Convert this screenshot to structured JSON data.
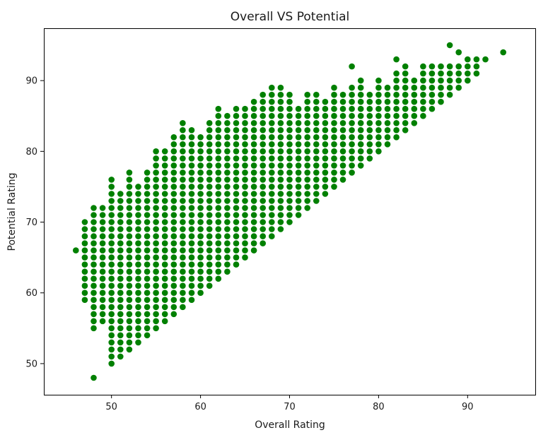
{
  "chart_data": {
    "type": "scatter",
    "title": "Overall VS Potential",
    "xlabel": "Overall Rating",
    "ylabel": "Potential Rating",
    "xlim": [
      42.4,
      97.6
    ],
    "ylim": [
      45.6,
      97.4
    ],
    "xticks": [
      50,
      60,
      70,
      80,
      90
    ],
    "yticks": [
      50,
      60,
      70,
      80,
      90
    ],
    "grid": false,
    "marker_color": "#008000",
    "series": [
      {
        "color": "#008000",
        "ranges": [
          [
            46,
            66,
            66
          ],
          [
            47,
            59,
            70
          ],
          [
            48,
            55,
            72
          ],
          [
            48,
            48,
            48
          ],
          [
            49,
            56,
            72
          ],
          [
            50,
            50,
            76
          ],
          [
            51,
            51,
            74
          ],
          [
            52,
            52,
            77
          ],
          [
            53,
            53,
            75
          ],
          [
            54,
            54,
            77
          ],
          [
            55,
            55,
            80
          ],
          [
            56,
            56,
            80
          ],
          [
            57,
            57,
            82
          ],
          [
            58,
            58,
            84
          ],
          [
            59,
            59,
            83
          ],
          [
            60,
            60,
            82
          ],
          [
            61,
            61,
            84
          ],
          [
            62,
            62,
            86
          ],
          [
            63,
            63,
            85
          ],
          [
            64,
            64,
            86
          ],
          [
            65,
            65,
            86
          ],
          [
            66,
            66,
            87
          ],
          [
            67,
            67,
            88
          ],
          [
            68,
            68,
            89
          ],
          [
            69,
            69,
            89
          ],
          [
            70,
            70,
            88
          ],
          [
            71,
            71,
            86
          ],
          [
            72,
            72,
            88
          ],
          [
            73,
            73,
            88
          ],
          [
            74,
            74,
            87
          ],
          [
            75,
            75,
            89
          ],
          [
            76,
            76,
            88
          ],
          [
            77,
            77,
            89
          ],
          [
            77,
            92,
            92
          ],
          [
            78,
            78,
            90
          ],
          [
            79,
            79,
            88
          ],
          [
            80,
            80,
            90
          ],
          [
            81,
            81,
            89
          ],
          [
            82,
            82,
            91
          ],
          [
            82,
            93,
            93
          ],
          [
            83,
            83,
            92
          ],
          [
            84,
            84,
            90
          ],
          [
            85,
            85,
            92
          ],
          [
            86,
            86,
            92
          ],
          [
            87,
            87,
            92
          ],
          [
            88,
            88,
            92
          ],
          [
            88,
            95,
            95
          ],
          [
            89,
            89,
            92
          ],
          [
            89,
            94,
            94
          ],
          [
            90,
            90,
            93
          ],
          [
            91,
            91,
            93
          ],
          [
            92,
            93,
            93
          ],
          [
            94,
            94,
            94
          ]
        ],
        "points": [
          [
            48,
            60
          ],
          [
            48,
            70
          ],
          [
            48,
            68
          ],
          [
            48,
            65
          ],
          [
            48,
            63
          ],
          [
            49,
            59
          ],
          [
            49,
            57
          ],
          [
            49,
            68
          ],
          [
            49,
            70
          ],
          [
            50,
            55
          ],
          [
            50,
            52
          ],
          [
            50,
            53
          ],
          [
            51,
            54
          ],
          [
            51,
            51
          ],
          [
            51,
            52
          ],
          [
            52,
            56
          ],
          [
            52,
            52
          ],
          [
            52,
            55
          ],
          [
            52,
            58
          ],
          [
            53,
            54
          ],
          [
            53,
            53
          ],
          [
            53,
            56
          ],
          [
            53,
            57
          ],
          [
            54,
            56
          ],
          [
            54,
            54
          ],
          [
            54,
            58
          ],
          [
            55,
            55
          ],
          [
            55,
            57
          ],
          [
            56,
            56
          ],
          [
            56,
            57
          ],
          [
            57,
            58
          ],
          [
            57,
            57
          ]
        ]
      }
    ]
  }
}
